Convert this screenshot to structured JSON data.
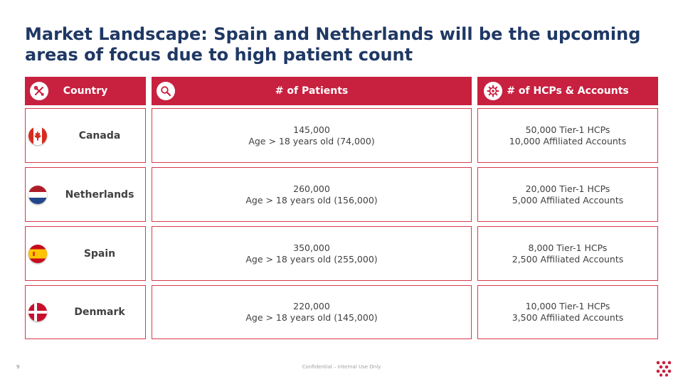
{
  "title": "Market Landscape: Spain and Netherlands will be the upcoming areas of focus due to high patient count",
  "headers": {
    "country": {
      "label": "Country",
      "icon": "tools-icon"
    },
    "patients": {
      "label": "# of Patients",
      "icon": "magnifier-icon"
    },
    "hcps": {
      "label": "# of HCPs & Accounts",
      "icon": "gear-icon"
    }
  },
  "rows": [
    {
      "country": "Canada",
      "flag": "canada-flag-icon",
      "patients_total": "145,000",
      "patients_adult": "Age > 18 years old (74,000)",
      "hcps": "50,000 Tier-1 HCPs",
      "accounts": "10,000 Affiliated Accounts"
    },
    {
      "country": "Netherlands",
      "flag": "netherlands-flag-icon",
      "patients_total": "260,000",
      "patients_adult": "Age > 18 years old (156,000)",
      "hcps": "20,000 Tier-1 HCPs",
      "accounts": "5,000 Affiliated Accounts"
    },
    {
      "country": "Spain",
      "flag": "spain-flag-icon",
      "patients_total": "350,000",
      "patients_adult": "Age > 18 years old (255,000)",
      "hcps": "8,000 Tier-1 HCPs",
      "accounts": "2,500 Affiliated Accounts"
    },
    {
      "country": "Denmark",
      "flag": "denmark-flag-icon",
      "patients_total": "220,000",
      "patients_adult": "Age > 18 years old (145,000)",
      "hcps": "10,000 Tier-1 HCPs",
      "accounts": "3,500 Affiliated Accounts"
    }
  ],
  "footer": {
    "page_number": "9",
    "confidential": "Confidential – Internal Use Only",
    "logo": "dots-logo-icon"
  },
  "colors": {
    "title": "#1f3864",
    "header_bg": "#c8203f",
    "border": "#d63a4e"
  }
}
